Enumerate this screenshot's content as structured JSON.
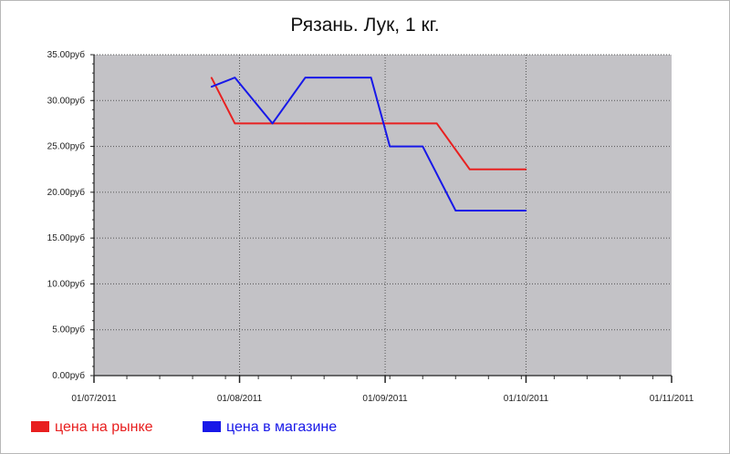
{
  "chart_data": {
    "type": "line",
    "title": "Рязань. Лук, 1 кг.",
    "xlabel": "",
    "ylabel": "",
    "x_ticks": [
      "01/07/2011",
      "01/08/2011",
      "01/09/2011",
      "01/10/2011",
      "01/11/2011"
    ],
    "y_ticks": [
      "0.00руб",
      "5.00руб",
      "10.00руб",
      "15.00руб",
      "20.00руб",
      "25.00руб",
      "30.00руб",
      "35.00руб"
    ],
    "xlim": [
      "2011-07-01",
      "2011-11-01"
    ],
    "ylim": [
      0,
      35
    ],
    "grid": true,
    "legend_position": "bottom-left",
    "background": "#c3c2c6",
    "series": [
      {
        "name": "цена на рынке",
        "color": "#e82020",
        "points": [
          {
            "x": "2011-07-26",
            "y": 32.5
          },
          {
            "x": "2011-07-31",
            "y": 27.5
          },
          {
            "x": "2011-08-08",
            "y": 27.5
          },
          {
            "x": "2011-08-15",
            "y": 27.5
          },
          {
            "x": "2011-08-22",
            "y": 27.5
          },
          {
            "x": "2011-08-29",
            "y": 27.5
          },
          {
            "x": "2011-09-05",
            "y": 27.5
          },
          {
            "x": "2011-09-12",
            "y": 27.5
          },
          {
            "x": "2011-09-19",
            "y": 22.5
          },
          {
            "x": "2011-09-26",
            "y": 22.5
          },
          {
            "x": "2011-10-01",
            "y": 22.5
          }
        ]
      },
      {
        "name": "цена в магазине",
        "color": "#1818e8",
        "points": [
          {
            "x": "2011-07-26",
            "y": 31.5
          },
          {
            "x": "2011-07-31",
            "y": 32.5
          },
          {
            "x": "2011-08-08",
            "y": 27.5
          },
          {
            "x": "2011-08-15",
            "y": 32.5
          },
          {
            "x": "2011-08-22",
            "y": 32.5
          },
          {
            "x": "2011-08-29",
            "y": 32.5
          },
          {
            "x": "2011-09-02",
            "y": 25.0
          },
          {
            "x": "2011-09-09",
            "y": 25.0
          },
          {
            "x": "2011-09-16",
            "y": 18.0
          },
          {
            "x": "2011-09-23",
            "y": 18.0
          },
          {
            "x": "2011-10-01",
            "y": 18.0
          }
        ]
      }
    ]
  }
}
